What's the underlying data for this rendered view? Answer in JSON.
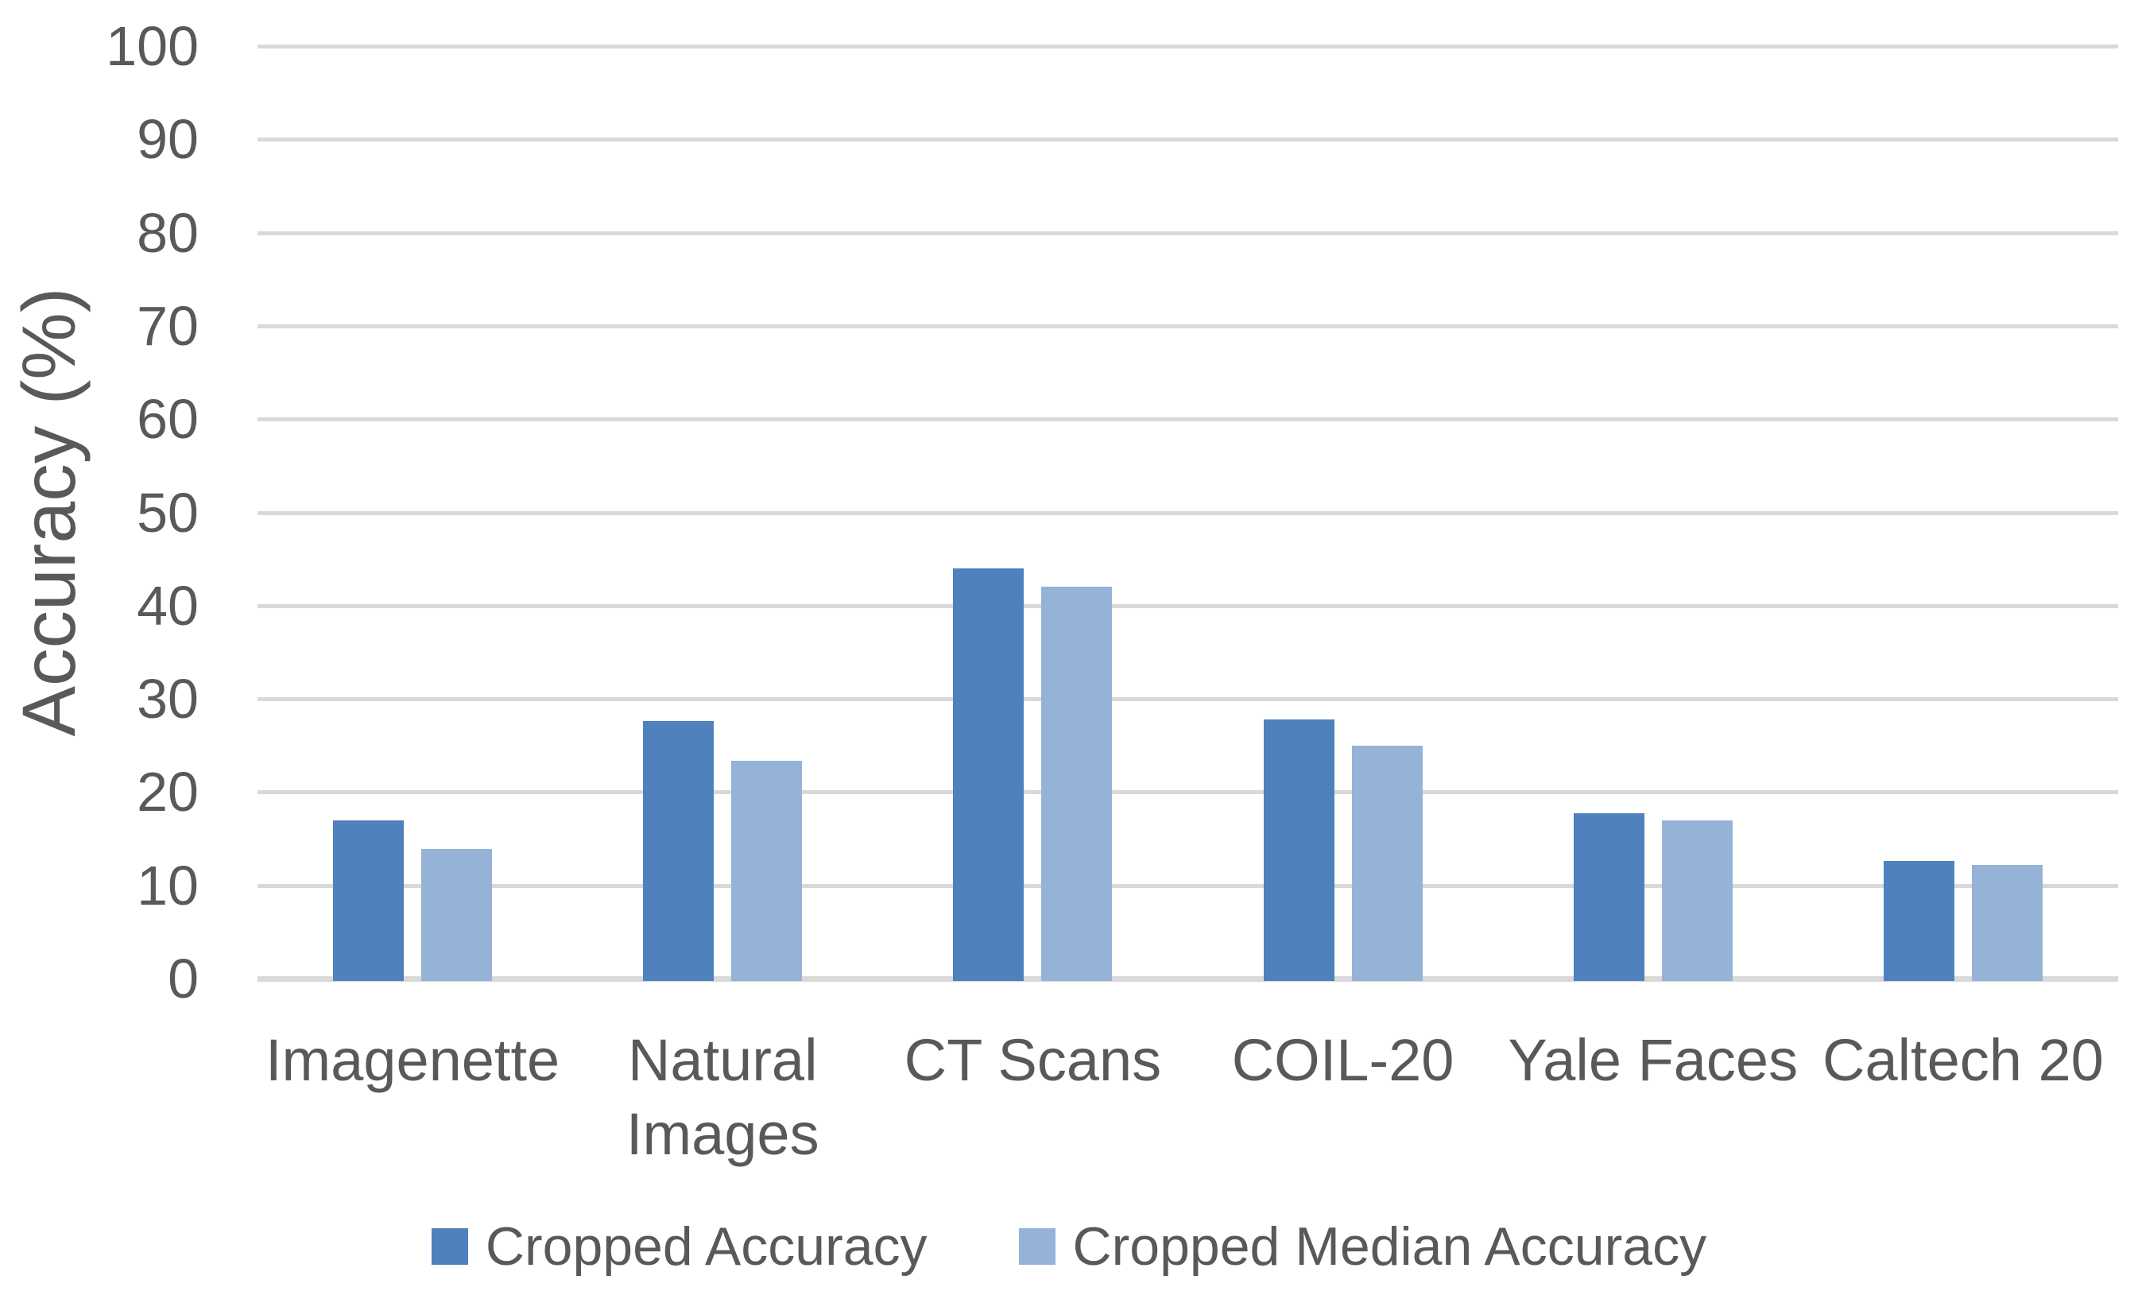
{
  "chart_data": {
    "type": "bar",
    "title": "",
    "xlabel": "",
    "ylabel": "Accuracy (%)",
    "ylim": [
      0,
      100
    ],
    "yticks": [
      0,
      10,
      20,
      30,
      40,
      50,
      60,
      70,
      80,
      90,
      100
    ],
    "grid": true,
    "gridline_color": "#d9d9d9",
    "text_color": "#595959",
    "background_color": "#ffffff",
    "legend_position": "bottom",
    "categories": [
      "Imagenette",
      "Natural Images",
      "CT Scans",
      "COIL-20",
      "Yale Faces",
      "Caltech 20"
    ],
    "series": [
      {
        "name": "Cropped Accuracy",
        "color": "#4f81bd",
        "values": [
          17.0,
          27.6,
          44.0,
          27.8,
          17.7,
          12.6
        ]
      },
      {
        "name": "Cropped Median Accuracy",
        "color": "#95b3d7",
        "values": [
          13.9,
          23.4,
          42.0,
          25.0,
          17.0,
          12.2
        ]
      }
    ]
  }
}
